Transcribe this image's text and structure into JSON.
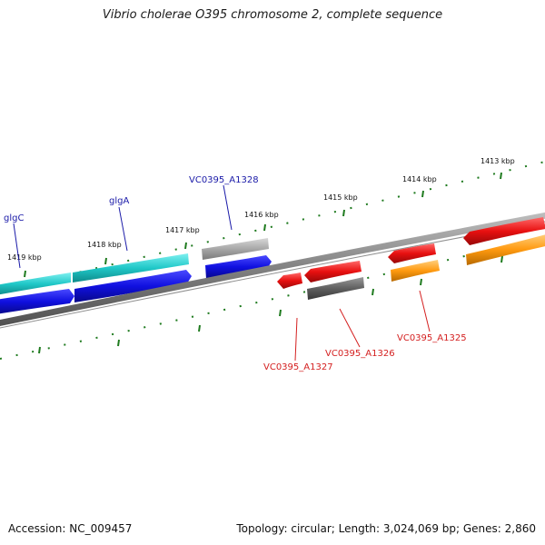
{
  "title": "Vibrio cholerae O395 chromosome 2, complete sequence",
  "footer": {
    "accession": "Accession: NC_009457",
    "summary": "Topology: circular; Length: 3,024,069 bp; Genes: 2,860"
  },
  "ticks": [
    {
      "label": "1419 kbp"
    },
    {
      "label": "1418 kbp"
    },
    {
      "label": "1417 kbp"
    },
    {
      "label": "1416 kbp"
    },
    {
      "label": "1415 kbp"
    },
    {
      "label": "1414 kbp"
    },
    {
      "label": "1413 kbp"
    }
  ],
  "genes": [
    {
      "name": "glgC",
      "color": "#2040d0"
    },
    {
      "name": "glgA",
      "color": "#2040d0"
    },
    {
      "name": "VC0395_A1328",
      "color": "#2040d0"
    },
    {
      "name": "VC0395_A1327",
      "color": "#d42020"
    },
    {
      "name": "VC0395_A1326",
      "color": "#d42020"
    },
    {
      "name": "VC0395_A1325",
      "color": "#d42020"
    }
  ],
  "colors": {
    "backbone": "#808080",
    "tick": "#1e7a1e",
    "cyan_track": "#20c8c8",
    "blue_track": "#1010e0",
    "gray_track": "#a0a0a0",
    "red_track": "#e81010",
    "dark_gray_track": "#606060",
    "orange_track": "#ff9a10"
  }
}
